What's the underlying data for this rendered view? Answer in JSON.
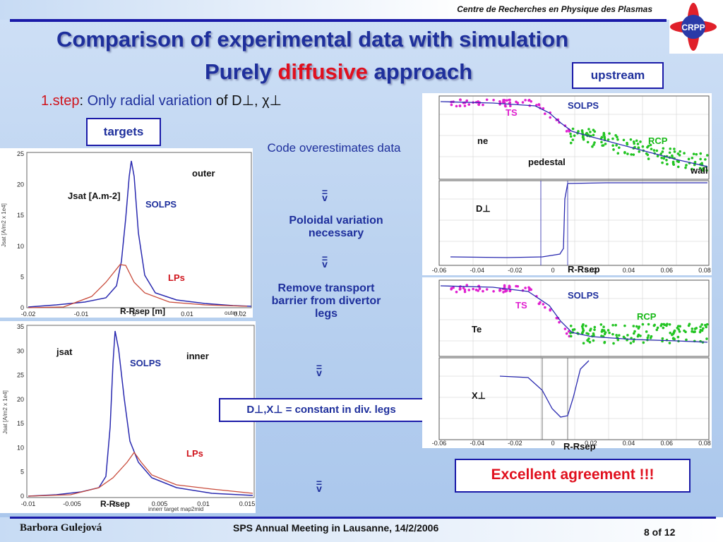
{
  "header": {
    "org": "Centre de Recherches en Physique des Plasmas",
    "logo_text": "CRPP",
    "title_line1": "Comparison of experimental data with simulation",
    "title_line2_a": "Purely ",
    "title_line2_b": "diffusive",
    "title_line2_c": " approach"
  },
  "labels": {
    "upstream": "upstream",
    "targets": "targets",
    "step_prefix": "1.step",
    "step_colon": ": ",
    "step_text": "Only radial variation",
    "step_of": " of D⊥, χ⊥",
    "excellent": "Excellent agreement !!!",
    "dx_constant": "D⊥,X⊥ = constant in div. legs"
  },
  "reasoning": {
    "code_over": "Code overestimates data",
    "poloidal": "Poloidal variation necessary",
    "remove": "Remove transport barrier from divertor legs",
    "arrow": "=\nv"
  },
  "outer_plot": {
    "corner": "outer",
    "ylabel": "Jsat [A.m-2]",
    "solps": "SOLPS",
    "lps": "LPs",
    "xlabel": "R-Rsep [m]",
    "yticks": [
      "25",
      "20",
      "15",
      "10",
      "5",
      "0"
    ],
    "xticks": [
      "-0.02",
      "-0.01",
      "0",
      "0.01",
      "0.02"
    ],
    "footnote": "outer t"
  },
  "inner_plot": {
    "corner": "inner",
    "ylabel": "jsat",
    "solps": "SOLPS",
    "lps": "LPs",
    "xlabel": "R-Rsep",
    "yticks": [
      "35",
      "30",
      "25",
      "20",
      "15",
      "10",
      "5",
      "0"
    ],
    "xticks": [
      "-0.01",
      "-0.005",
      "0",
      "0.005",
      "0.01",
      "0.015"
    ],
    "footnote": "innerr target map2mid"
  },
  "ne_plot": {
    "ts": "TS",
    "solps": "SOLPS",
    "rcp": "RCP",
    "ne": "ne",
    "pedestal": "pedestal",
    "wall": "wall",
    "d": "D⊥",
    "xlabel": "R-Rsep",
    "xticks": [
      "-0.06",
      "-0.04",
      "-0.02",
      "0",
      "0.02",
      "0.04",
      "0.06",
      "0.08"
    ]
  },
  "te_plot": {
    "ts": "TS",
    "solps": "SOLPS",
    "rcp": "RCP",
    "te": "Te",
    "x": "X⊥",
    "xlabel": "R-Rsep",
    "xticks": [
      "-0.06",
      "-0.04",
      "-0.02",
      "0",
      "0.02",
      "0.04",
      "0.06",
      "0.08"
    ]
  },
  "footer": {
    "author": "Barbora Gulejová",
    "meeting": "SPS Annual Meeting in Lausanne, 14/2/2006",
    "page": "8 of 12"
  },
  "colors": {
    "title": "#1e2f9c",
    "accent_red": "#e0101e",
    "solps_line": "#2a2ab0",
    "lps_line": "#c84a3a",
    "rcp_points": "#22c422",
    "ts_points": "#e020d0"
  }
}
